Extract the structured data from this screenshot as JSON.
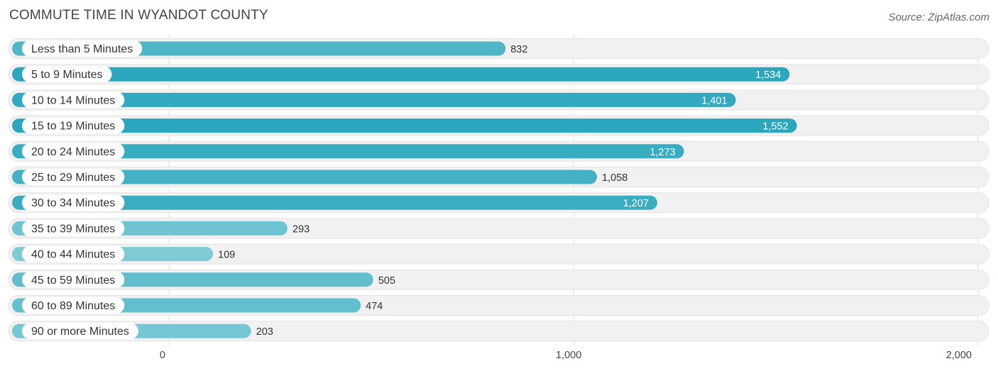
{
  "title": "COMMUTE TIME IN WYANDOT COUNTY",
  "source": "Source: ZipAtlas.com",
  "colors": {
    "bar_dark": "#2ba6bc",
    "bar_light": "#7ecbd6",
    "track": "#f1f1f1",
    "grid": "#dddddd",
    "label_text": "#333333",
    "value_inside": "#ffffff",
    "value_outside": "#333333"
  },
  "chart_data": {
    "type": "bar",
    "orientation": "horizontal",
    "categories": [
      "Less than 5 Minutes",
      "5 to 9 Minutes",
      "10 to 14 Minutes",
      "15 to 19 Minutes",
      "20 to 24 Minutes",
      "25 to 29 Minutes",
      "30 to 34 Minutes",
      "35 to 39 Minutes",
      "40 to 44 Minutes",
      "45 to 59 Minutes",
      "60 to 89 Minutes",
      "90 or more Minutes"
    ],
    "values": [
      832,
      1534,
      1401,
      1552,
      1273,
      1058,
      1207,
      293,
      109,
      505,
      474,
      203
    ],
    "value_labels": [
      "832",
      "1,534",
      "1,401",
      "1,552",
      "1,273",
      "1,058",
      "1,207",
      "293",
      "109",
      "505",
      "474",
      "203"
    ],
    "xlim": [
      0,
      2000
    ],
    "ticks": [
      0,
      1000,
      2000
    ],
    "tick_labels": [
      "0",
      "1,000",
      "2,000"
    ],
    "grid": true
  }
}
